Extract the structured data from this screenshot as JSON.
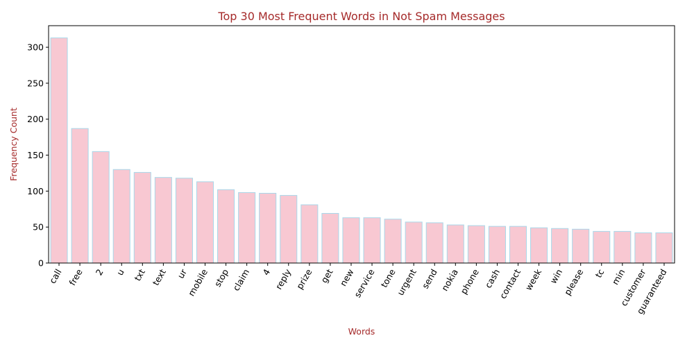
{
  "chart_data": {
    "type": "bar",
    "title": "Top 30 Most Frequent Words in Not Spam Messages",
    "xlabel": "Words",
    "ylabel": "Frequency Count",
    "categories": [
      "call",
      "free",
      "2",
      "u",
      "txt",
      "text",
      "ur",
      "mobile",
      "stop",
      "claim",
      "4",
      "reply",
      "prize",
      "get",
      "new",
      "service",
      "tone",
      "urgent",
      "send",
      "nokia",
      "phone",
      "cash",
      "contact",
      "week",
      "win",
      "please",
      "tc",
      "min",
      "customer",
      "guaranteed"
    ],
    "values": [
      313,
      187,
      155,
      130,
      126,
      119,
      118,
      113,
      102,
      98,
      97,
      94,
      81,
      69,
      63,
      63,
      61,
      57,
      56,
      53,
      52,
      51,
      51,
      49,
      48,
      47,
      44,
      44,
      42,
      42
    ],
    "ylim": [
      0,
      330
    ],
    "yticks": [
      0,
      50,
      100,
      150,
      200,
      250,
      300
    ],
    "grid": false,
    "legend": "none",
    "colors": {
      "bar_fill": "#f8c8d2",
      "bar_edge": "#a8d8ea",
      "text_accent": "#a52a2a"
    }
  }
}
